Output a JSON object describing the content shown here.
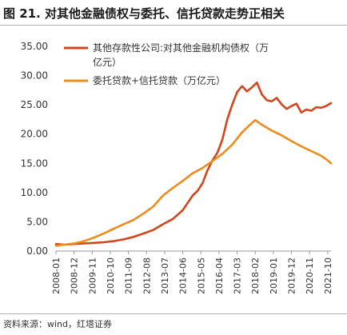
{
  "header": {
    "title": "图 21. 对其他金融债权与委托、信托贷款走势正相关"
  },
  "footer": {
    "source": "资料来源：wind，红塔证券"
  },
  "colors": {
    "series_0": "#d2461e",
    "series_1": "#ee8c1e",
    "axis": "#999999"
  },
  "chart_data": {
    "type": "line",
    "title": "图 21. 对其他金融债权与委托、信托贷款走势正相关",
    "xlabel": "",
    "ylabel": "",
    "ylim": [
      0,
      35
    ],
    "yticks": [
      0,
      5,
      10,
      15,
      20,
      25,
      30,
      35
    ],
    "ytick_labels": [
      "0.00",
      "5.00",
      "10.00",
      "15.00",
      "20.00",
      "25.00",
      "30.00",
      "35.00"
    ],
    "xlim": [
      "2008-01",
      "2021-12"
    ],
    "xtick_labels": [
      "2008-01",
      "2008-12",
      "2009-11",
      "2010-10",
      "2011-09",
      "2012-08",
      "2013-07",
      "2014-06",
      "2015-05",
      "2016-04",
      "2017-03",
      "2018-02",
      "2019-01",
      "2019-12",
      "2020-11",
      "2021-10"
    ],
    "legend_position": "top-left",
    "series": [
      {
        "name": "其他存款性公司:对其他金融机构债权（万亿元）",
        "color": "#d2461e",
        "points": [
          [
            "2008-01",
            1.2
          ],
          [
            "2008-06",
            1.1
          ],
          [
            "2008-12",
            1.2
          ],
          [
            "2009-06",
            1.3
          ],
          [
            "2009-12",
            1.4
          ],
          [
            "2010-06",
            1.5
          ],
          [
            "2010-12",
            1.7
          ],
          [
            "2011-06",
            2.0
          ],
          [
            "2011-12",
            2.4
          ],
          [
            "2012-06",
            3.0
          ],
          [
            "2012-12",
            3.6
          ],
          [
            "2013-06",
            4.6
          ],
          [
            "2013-12",
            5.5
          ],
          [
            "2014-06",
            7.0
          ],
          [
            "2014-12",
            9.5
          ],
          [
            "2015-03",
            10.3
          ],
          [
            "2015-06",
            11.6
          ],
          [
            "2015-09",
            13.8
          ],
          [
            "2015-12",
            15.5
          ],
          [
            "2016-03",
            16.8
          ],
          [
            "2016-06",
            19.0
          ],
          [
            "2016-09",
            22.5
          ],
          [
            "2016-12",
            25.0
          ],
          [
            "2017-03",
            27.2
          ],
          [
            "2017-06",
            28.2
          ],
          [
            "2017-09",
            27.3
          ],
          [
            "2017-12",
            28.0
          ],
          [
            "2018-03",
            28.8
          ],
          [
            "2018-06",
            26.8
          ],
          [
            "2018-09",
            25.8
          ],
          [
            "2018-12",
            25.6
          ],
          [
            "2019-03",
            26.2
          ],
          [
            "2019-06",
            25.1
          ],
          [
            "2019-09",
            24.3
          ],
          [
            "2019-12",
            24.8
          ],
          [
            "2020-03",
            25.2
          ],
          [
            "2020-06",
            23.7
          ],
          [
            "2020-09",
            24.2
          ],
          [
            "2020-12",
            24.0
          ],
          [
            "2021-03",
            24.6
          ],
          [
            "2021-06",
            24.5
          ],
          [
            "2021-09",
            24.8
          ],
          [
            "2021-12",
            25.3
          ]
        ]
      },
      {
        "name": "委托贷款+信托贷款（万亿元）",
        "color": "#ee8c1e",
        "points": [
          [
            "2008-01",
            0.9
          ],
          [
            "2008-06",
            1.1
          ],
          [
            "2008-12",
            1.3
          ],
          [
            "2009-06",
            1.7
          ],
          [
            "2009-12",
            2.3
          ],
          [
            "2010-06",
            3.0
          ],
          [
            "2010-12",
            3.8
          ],
          [
            "2011-06",
            4.6
          ],
          [
            "2011-12",
            5.3
          ],
          [
            "2012-06",
            6.4
          ],
          [
            "2012-12",
            7.6
          ],
          [
            "2013-06",
            9.5
          ],
          [
            "2013-12",
            10.8
          ],
          [
            "2014-06",
            12.0
          ],
          [
            "2014-12",
            13.3
          ],
          [
            "2015-06",
            14.2
          ],
          [
            "2015-12",
            15.4
          ],
          [
            "2016-06",
            16.6
          ],
          [
            "2016-12",
            18.2
          ],
          [
            "2017-06",
            20.3
          ],
          [
            "2017-12",
            21.9
          ],
          [
            "2018-02",
            22.4
          ],
          [
            "2018-06",
            21.6
          ],
          [
            "2018-12",
            20.6
          ],
          [
            "2019-06",
            19.8
          ],
          [
            "2019-12",
            18.8
          ],
          [
            "2020-06",
            17.9
          ],
          [
            "2020-12",
            17.1
          ],
          [
            "2021-06",
            16.3
          ],
          [
            "2021-10",
            15.5
          ],
          [
            "2021-12",
            15.0
          ]
        ]
      }
    ]
  }
}
